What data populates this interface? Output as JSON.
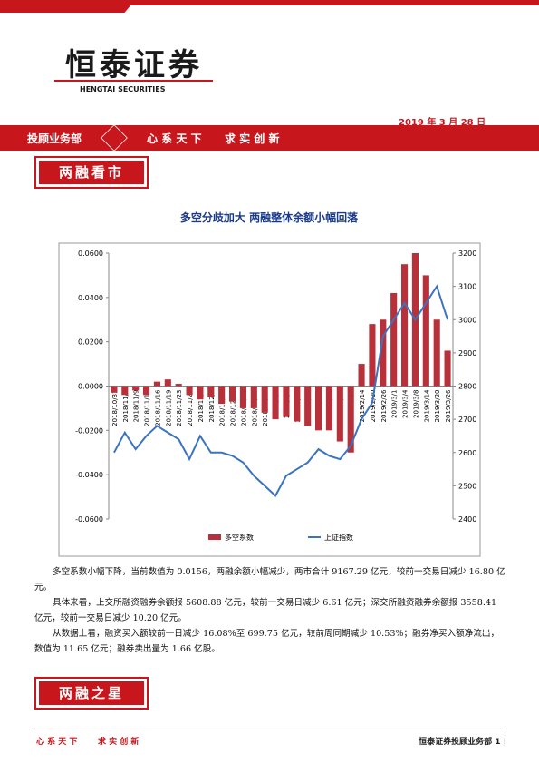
{
  "header": {
    "logo": "恒泰证券",
    "logo_en": "HENGTAI SECURITIES",
    "date": "2019 年 3 月 28 日",
    "department": "投顾业务部",
    "motto1": "心 系 天 下",
    "motto2": "求 实 创 新"
  },
  "section1": "两融看市",
  "chart_data": {
    "type": "bar-line",
    "title": "多空分歧加大  两融整体余额小幅回落",
    "categories": [
      "2018/10/31",
      "2018/11/6",
      "2018/11/9",
      "2018/11/13",
      "2018/11/16",
      "2018/11/19",
      "2018/11/23",
      "2018/11/28",
      "2018/12/3",
      "2018/12/6",
      "2018/12/11",
      "2018/12/14",
      "2018/12/19",
      "2018/12/24",
      "2018/12/27",
      "2019/1/3",
      "2019/1/8",
      "2019/1/11",
      "2019/1/16",
      "2019/1/21",
      "2019/1/24",
      "2019/1/29",
      "2019/2/1",
      "2019/2/14",
      "2019/2/20",
      "2019/2/26",
      "2019/3/1",
      "2019/3/4",
      "2019/3/8",
      "2019/3/14",
      "2019/3/20",
      "2019/3/26"
    ],
    "series": [
      {
        "name": "多空系数",
        "color": "#b8313a",
        "values": [
          -0.003,
          -0.004,
          -0.002,
          -0.004,
          0.002,
          0.003,
          0.001,
          -0.004,
          -0.006,
          -0.005,
          -0.008,
          -0.007,
          -0.01,
          -0.01,
          -0.012,
          -0.015,
          -0.014,
          -0.016,
          -0.018,
          -0.02,
          -0.02,
          -0.025,
          -0.03,
          0.01,
          0.028,
          0.03,
          0.042,
          0.055,
          0.06,
          0.05,
          0.03,
          0.016
        ]
      },
      {
        "name": "上证指数",
        "color": "#3a73c0",
        "axis": "y2",
        "values": [
          2600,
          2660,
          2610,
          2650,
          2680,
          2660,
          2640,
          2580,
          2650,
          2600,
          2600,
          2590,
          2570,
          2530,
          2500,
          2470,
          2530,
          2550,
          2570,
          2610,
          2590,
          2580,
          2620,
          2700,
          2750,
          2950,
          3000,
          3050,
          3000,
          3050,
          3100,
          3000
        ]
      }
    ],
    "ylim": [
      -0.06,
      0.06
    ],
    "yticks": [
      {
        "value": -0.06,
        "label": "-0.0600"
      },
      {
        "value": -0.04,
        "label": "-0.0400"
      },
      {
        "value": -0.02,
        "label": "-0.0200"
      },
      {
        "value": 0,
        "label": "0.0000"
      },
      {
        "value": 0.02,
        "label": "0.0200"
      },
      {
        "value": 0.04,
        "label": "0.0400"
      },
      {
        "value": 0.06,
        "label": "0.0600"
      }
    ],
    "y2lim": [
      2400,
      3200
    ],
    "y2ticks": [
      2400,
      2500,
      2600,
      2700,
      2800,
      2900,
      3000,
      3100,
      3200
    ]
  },
  "paragraphs": [
    "多空系数小幅下降，当前数值为 0.0156，两融余额小幅减少，两市合计 9167.29 亿元，较前一交易日减少 16.80 亿元。",
    "具体来看，上交所融资融券余额报 5608.88 亿元，较前一交易日减少 6.61 亿元；深交所融资融券余额报 3558.41 亿元，较前一交易日减少 10.20 亿元。",
    "从数据上看，融资买入额较前一日减少 16.08%至 699.75 亿元，较前周同期减少 10.53%；融券净买入额净流出，数值为 11.65 亿元；融券卖出量为 1.66 亿股。"
  ],
  "section2": "两融之星",
  "footer": {
    "motto1": "心 系 天 下",
    "motto2": "求 实 创 新",
    "page": "恒泰证券投顾业务部 1 |"
  }
}
